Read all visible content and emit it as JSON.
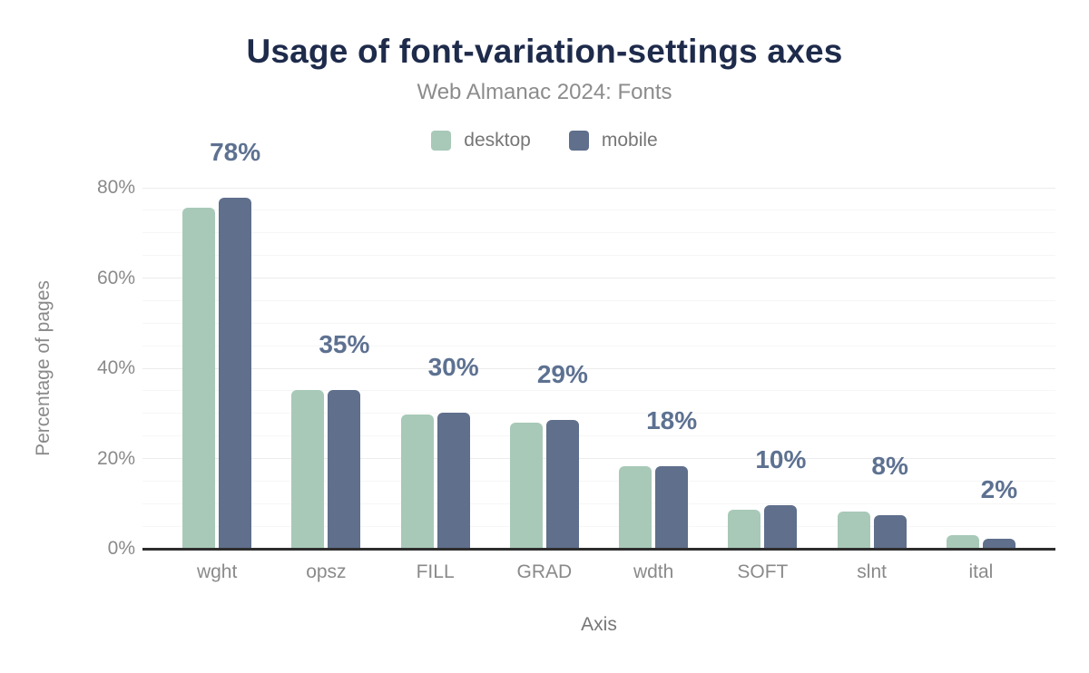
{
  "chart_data": {
    "type": "bar",
    "title": "Usage of font-variation-settings axes",
    "subtitle": "Web Almanac 2024: Fonts",
    "xlabel": "Axis",
    "ylabel": "Percentage of pages",
    "categories": [
      "wght",
      "opsz",
      "FILL",
      "GRAD",
      "wdth",
      "SOFT",
      "slnt",
      "ital"
    ],
    "series": [
      {
        "name": "desktop",
        "color": "#a8c9b8",
        "values": [
          75.5,
          35.2,
          29.7,
          27.9,
          18.3,
          8.6,
          8.3,
          3.0
        ]
      },
      {
        "name": "mobile",
        "color": "#5f6f8c",
        "values": [
          77.8,
          35.2,
          30.1,
          28.6,
          18.2,
          9.6,
          7.4,
          2.2
        ]
      }
    ],
    "bar_labels": [
      "78%",
      "35%",
      "30%",
      "29%",
      "18%",
      "10%",
      "8%",
      "2%"
    ],
    "y_ticks": [
      "0%",
      "20%",
      "40%",
      "60%",
      "80%"
    ],
    "y_tick_values": [
      0,
      20,
      40,
      60,
      80
    ],
    "ylim": [
      0,
      80
    ],
    "grid": "horizontal minor lines every 5%",
    "legend_position": "top-center",
    "colors": {
      "title": "#1e2b4b",
      "subtitle": "#8c8c8c",
      "bar_label": "#5d7191",
      "axis_text": "#8a8a8a",
      "axis_line": "#2e2e2e",
      "desktop": "#a8c9b8",
      "mobile": "#5f6f8c"
    }
  }
}
